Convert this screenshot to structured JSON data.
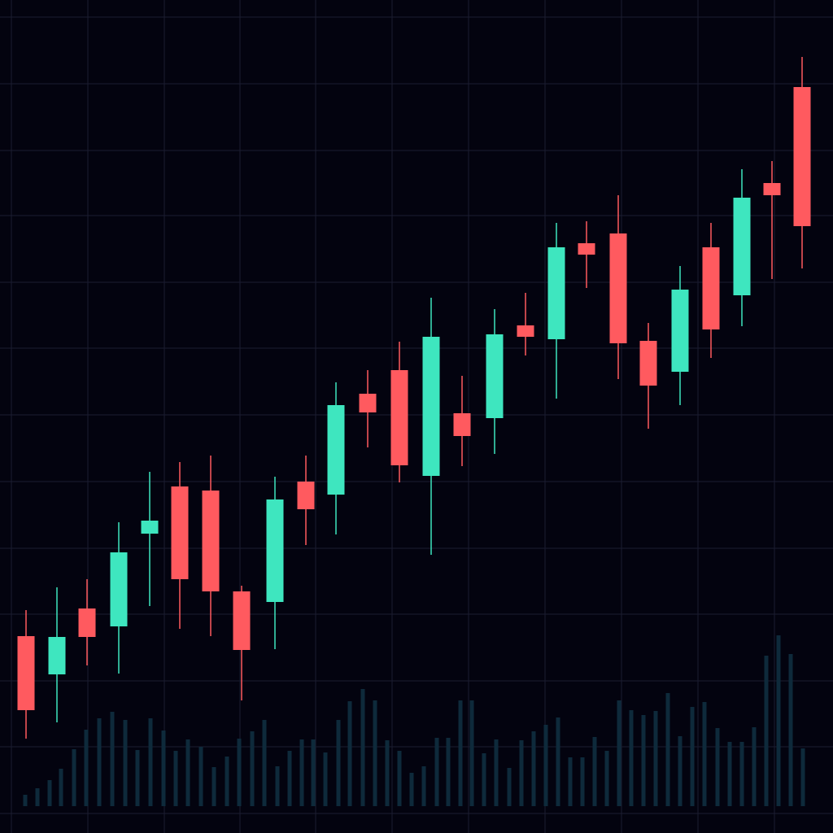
{
  "chart_data": {
    "type": "candlestick",
    "background": "#03030f",
    "grid": true,
    "grid_color": "#1b1d30",
    "xlim": [
      0,
      1024
    ],
    "ylim": [
      0,
      1024
    ],
    "xticks": [
      14,
      108,
      202,
      295,
      388,
      482,
      576,
      670,
      764,
      858,
      952
    ],
    "yticks": [
      1003,
      921,
      839,
      759,
      677,
      596,
      514,
      432,
      350,
      269,
      187,
      106,
      24
    ],
    "up_color": "#3ee6bf",
    "down_color": "#ff5a5f",
    "x": [
      32,
      70,
      107,
      146,
      184,
      221,
      259,
      297,
      338,
      376,
      413,
      452,
      491,
      530,
      568,
      608,
      646,
      684,
      721,
      760,
      797,
      836,
      874,
      912,
      949,
      986
    ],
    "open": [
      242,
      195,
      276,
      254,
      368,
      426,
      421,
      297,
      284,
      432,
      416,
      540,
      569,
      439,
      516,
      510,
      624,
      607,
      725,
      737,
      605,
      567,
      720,
      661,
      799,
      917
    ],
    "high": [
      274,
      302,
      312,
      382,
      444,
      456,
      464,
      304,
      438,
      464,
      554,
      569,
      604,
      658,
      562,
      644,
      664,
      750,
      752,
      784,
      627,
      697,
      750,
      816,
      826,
      954
    ],
    "low": [
      116,
      136,
      206,
      196,
      279,
      251,
      242,
      163,
      226,
      354,
      367,
      474,
      431,
      342,
      451,
      466,
      587,
      534,
      670,
      558,
      497,
      526,
      584,
      623,
      681,
      694
    ],
    "close": [
      151,
      241,
      241,
      345,
      384,
      312,
      297,
      225,
      410,
      398,
      526,
      517,
      452,
      610,
      488,
      613,
      610,
      720,
      711,
      602,
      550,
      668,
      619,
      781,
      784,
      746
    ],
    "volume": {
      "color": "#0e2a3b",
      "axis": "y2",
      "y2lim": [
        0,
        991
      ],
      "x": [
        31,
        46,
        61,
        75,
        91,
        106,
        122,
        138,
        154,
        169,
        185,
        201,
        216,
        231,
        247,
        263,
        279,
        294,
        310,
        325,
        341,
        356,
        371,
        385,
        400,
        416,
        430,
        446,
        461,
        476,
        491,
        506,
        521,
        537,
        551,
        566,
        580,
        595,
        610,
        626,
        641,
        656,
        671,
        686,
        701,
        716,
        731,
        746,
        761,
        776,
        791,
        806,
        821,
        836,
        851,
        866,
        882,
        897,
        912,
        927,
        942,
        957,
        972,
        987
      ],
      "values": [
        14,
        22,
        32,
        46,
        70,
        94,
        108,
        116,
        106,
        69,
        108,
        93,
        68,
        82,
        73,
        48,
        61,
        83,
        92,
        106,
        49,
        68,
        82,
        82,
        66,
        106,
        129,
        144,
        130,
        81,
        68,
        41,
        49,
        84,
        84,
        130,
        130,
        65,
        82,
        47,
        81,
        92,
        100,
        109,
        60,
        60,
        85,
        68,
        130,
        118,
        112,
        117,
        139,
        86,
        122,
        128,
        96,
        79,
        79,
        97,
        185,
        210,
        187,
        71
      ]
    }
  }
}
